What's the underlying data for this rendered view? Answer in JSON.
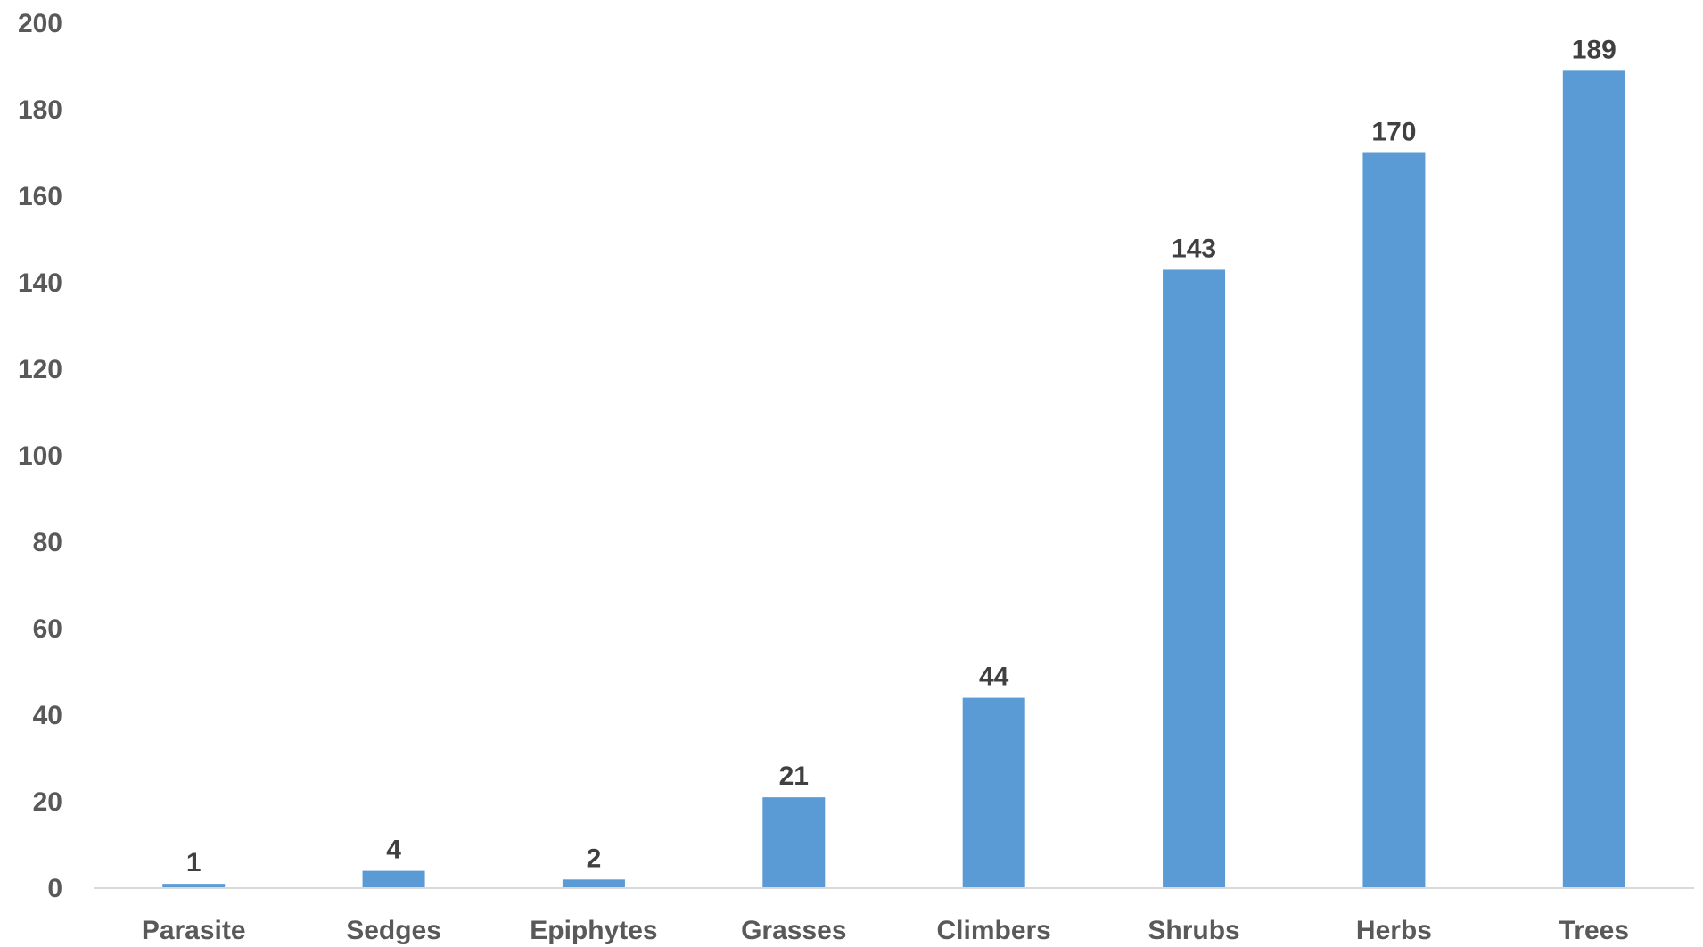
{
  "chart_data": {
    "type": "bar",
    "title": "",
    "xlabel": "",
    "ylabel": "",
    "categories": [
      "Parasite",
      "Sedges",
      "Epiphytes",
      "Grasses",
      "Climbers",
      "Shrubs",
      "Herbs",
      "Trees"
    ],
    "values": [
      1,
      4,
      2,
      21,
      44,
      143,
      170,
      189
    ],
    "data_labels": [
      "1",
      "4",
      "2",
      "21",
      "44",
      "143",
      "170",
      "189"
    ],
    "ylim": [
      0,
      200
    ],
    "yticks": [
      0,
      20,
      40,
      60,
      80,
      100,
      120,
      140,
      160,
      180,
      200
    ],
    "ytick_labels": [
      "0",
      "20",
      "40",
      "60",
      "80",
      "100",
      "120",
      "140",
      "160",
      "180",
      "200"
    ],
    "grid": false,
    "legend": "none",
    "bar_color": "#5b9bd5",
    "axis_color": "#d9d9d9"
  }
}
